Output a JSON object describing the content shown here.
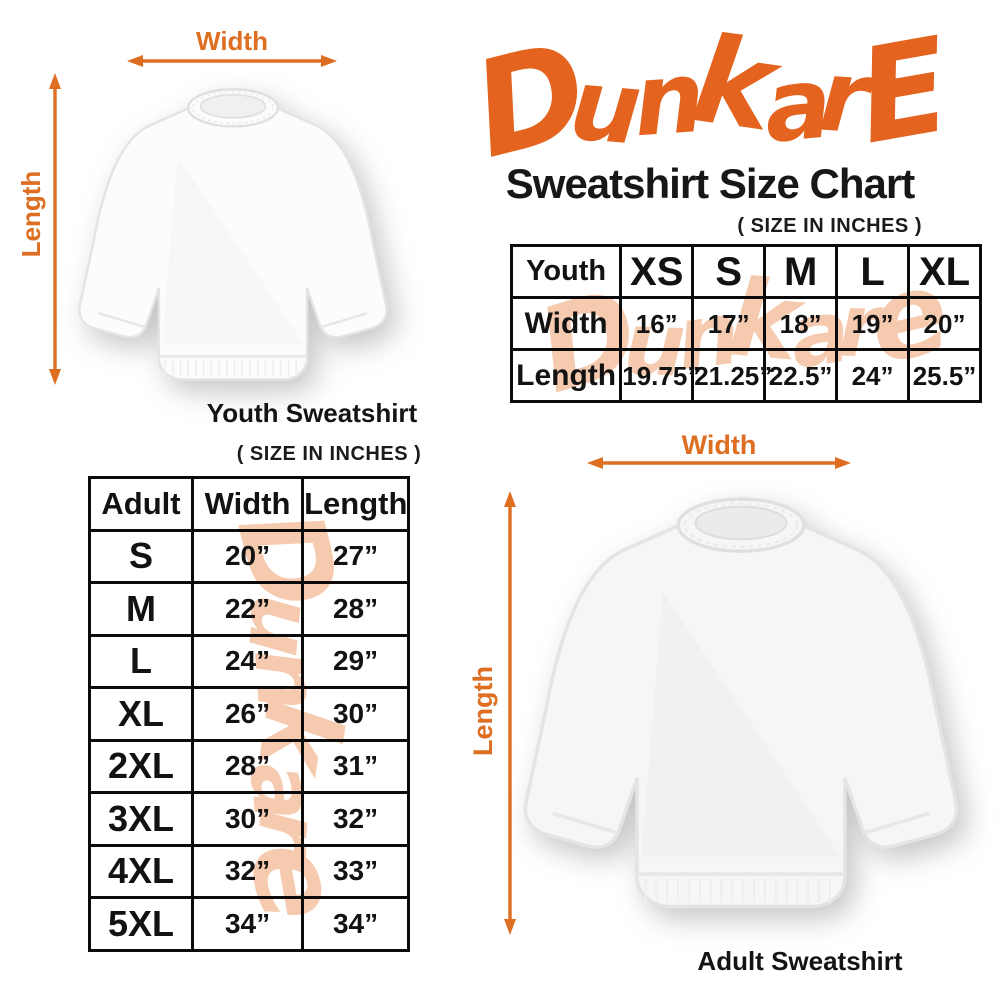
{
  "brand": {
    "logo_text": "DunkarE"
  },
  "header": {
    "title": "Sweatshirt Size Chart",
    "size_note": "( SIZE IN INCHES )"
  },
  "youth_diagram": {
    "width_label": "Width",
    "length_label": "Length",
    "caption": "Youth Sweatshirt"
  },
  "youth_table": {
    "header": [
      "Youth",
      "XS",
      "S",
      "M",
      "L",
      "XL"
    ],
    "rows": [
      [
        "Width",
        "16”",
        "17”",
        "18”",
        "19”",
        "20”"
      ],
      [
        "Length",
        "19.75”",
        "21.25”",
        "22.5”",
        "24”",
        "25.5”"
      ]
    ]
  },
  "adult_section": {
    "size_note": "( SIZE IN INCHES )"
  },
  "adult_table": {
    "header": [
      "Adult",
      "Width",
      "Length"
    ],
    "rows": [
      [
        "S",
        "20”",
        "27”"
      ],
      [
        "M",
        "22”",
        "28”"
      ],
      [
        "L",
        "24”",
        "29”"
      ],
      [
        "XL",
        "26”",
        "30”"
      ],
      [
        "2XL",
        "28”",
        "31”"
      ],
      [
        "3XL",
        "30”",
        "32”"
      ],
      [
        "4XL",
        "32”",
        "33”"
      ],
      [
        "5XL",
        "34”",
        "34”"
      ]
    ]
  },
  "adult_diagram": {
    "width_label": "Width",
    "length_label": "Length",
    "caption": "Adult Sweatshirt"
  },
  "watermark_text": "Dunkare",
  "colors": {
    "logo_orange": "#e4641f",
    "arrow_orange": "#dd6e22",
    "watermark_peach": "#f5c5a6",
    "text_black": "#131313"
  },
  "chart_data": [
    {
      "type": "table",
      "title": "Youth Sweatshirt Size Chart (inches)",
      "columns": [
        "Youth",
        "XS",
        "S",
        "M",
        "L",
        "XL"
      ],
      "rows": [
        [
          "Width",
          16,
          17,
          18,
          19,
          20
        ],
        [
          "Length",
          19.75,
          21.25,
          22.5,
          24,
          25.5
        ]
      ]
    },
    {
      "type": "table",
      "title": "Adult Sweatshirt Size Chart (inches)",
      "columns": [
        "Adult",
        "Width",
        "Length"
      ],
      "rows": [
        [
          "S",
          20,
          27
        ],
        [
          "M",
          22,
          28
        ],
        [
          "L",
          24,
          29
        ],
        [
          "XL",
          26,
          30
        ],
        [
          "2XL",
          28,
          31
        ],
        [
          "3XL",
          30,
          32
        ],
        [
          "4XL",
          32,
          33
        ],
        [
          "5XL",
          34,
          34
        ]
      ]
    }
  ]
}
